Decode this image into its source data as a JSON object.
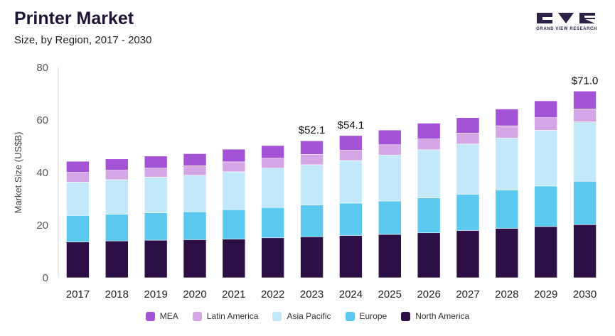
{
  "header": {
    "title": "Printer Market",
    "subtitle": "Size, by Region, 2017 - 2030"
  },
  "logo": {
    "text": "GRAND VIEW RESEARCH",
    "color": "#2d2046"
  },
  "chart_data": {
    "type": "bar",
    "stacked": true,
    "categories": [
      "2017",
      "2018",
      "2019",
      "2020",
      "2021",
      "2022",
      "2023",
      "2024",
      "2025",
      "2026",
      "2027",
      "2028",
      "2029",
      "2030"
    ],
    "ylabel": "Market Size (US$B)",
    "ylim": [
      0,
      80
    ],
    "yticks": [
      0,
      20,
      40,
      60,
      80
    ],
    "grid": false,
    "legend_position": "bottom",
    "series": [
      {
        "name": "North America",
        "color": "#2b0f45",
        "values": [
          13.6,
          14.0,
          14.3,
          14.5,
          14.7,
          15.2,
          15.6,
          16.1,
          16.5,
          17.1,
          18.0,
          18.8,
          19.5,
          20.2
        ]
      },
      {
        "name": "Europe",
        "color": "#5bc8ef",
        "values": [
          10.1,
          10.2,
          10.4,
          10.6,
          11.2,
          11.5,
          12.1,
          12.3,
          12.7,
          13.3,
          13.8,
          14.6,
          15.4,
          16.5
        ]
      },
      {
        "name": "Asia Pacific",
        "color": "#c2e8f9",
        "values": [
          12.7,
          13.1,
          13.6,
          13.9,
          14.4,
          15.0,
          15.3,
          16.2,
          17.5,
          18.3,
          19.1,
          19.8,
          21.2,
          22.6
        ]
      },
      {
        "name": "Latin America",
        "color": "#d5a6e6",
        "values": [
          3.7,
          3.6,
          3.4,
          3.6,
          3.8,
          3.8,
          3.9,
          3.9,
          3.9,
          4.1,
          4.1,
          4.6,
          4.8,
          4.9
        ]
      },
      {
        "name": "MEA",
        "color": "#a553d6",
        "values": [
          4.2,
          4.3,
          4.6,
          4.6,
          4.8,
          4.8,
          5.2,
          5.6,
          5.6,
          6.0,
          5.9,
          6.4,
          6.4,
          6.8
        ]
      }
    ],
    "annotations": [
      {
        "category": "2023",
        "label": "$52.1",
        "value": 52.1
      },
      {
        "category": "2024",
        "label": "$54.1",
        "value": 54.1
      },
      {
        "category": "2030",
        "label": "$71.0",
        "value": 71.0
      }
    ],
    "legend_order": [
      "MEA",
      "Latin America",
      "Asia Pacific",
      "Europe",
      "North America"
    ]
  }
}
